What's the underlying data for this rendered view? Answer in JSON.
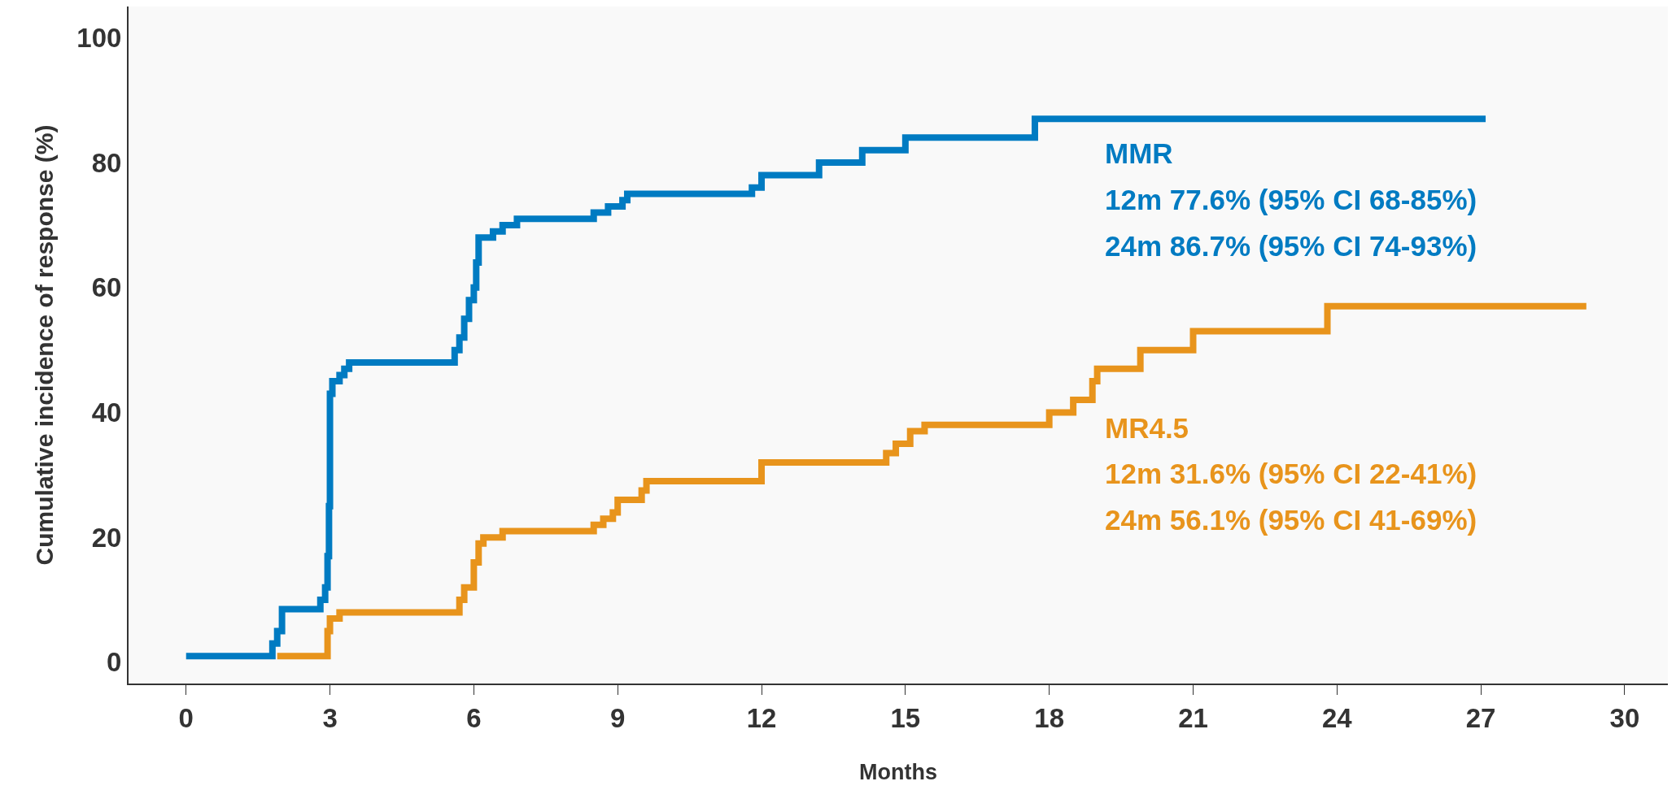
{
  "chart_data": {
    "type": "step",
    "xlabel": "Months",
    "ylabel": "Cumulative incidence of response (%)",
    "xlim": [
      -1.2,
      30.9
    ],
    "ylim": [
      -3.4,
      105
    ],
    "xticks": [
      0,
      3,
      6,
      9,
      12,
      15,
      18,
      21,
      24,
      27,
      30
    ],
    "yticks": [
      0,
      20,
      40,
      60,
      80,
      100
    ],
    "grid": false,
    "legend": false,
    "marker": "none",
    "line_style": "solid",
    "series": [
      {
        "name": "MMR",
        "color": "#007bc2",
        "x": [
          0,
          1.8,
          1.9,
          2.0,
          2.8,
          2.9,
          2.95,
          2.98,
          3.0,
          3.05,
          3.2,
          3.3,
          3.4,
          5.6,
          5.7,
          5.8,
          5.9,
          6.0,
          6.05,
          6.1,
          6.4,
          6.6,
          6.9,
          8.5,
          8.8,
          9.1,
          9.2,
          11.8,
          12.0,
          13.2,
          14.1,
          15.0,
          17.7,
          27.1
        ],
        "values": [
          1,
          3,
          5,
          8.5,
          10,
          12,
          17,
          25,
          43,
          45,
          46,
          47,
          48,
          50,
          52,
          55,
          58,
          60,
          64,
          68,
          69,
          70,
          71,
          72,
          73,
          74,
          75,
          76,
          78,
          80,
          82,
          84,
          87,
          87
        ]
      },
      {
        "name": "MR4.5",
        "color": "#e8941c",
        "x": [
          1.9,
          2.95,
          3.0,
          3.2,
          5.7,
          5.8,
          6.0,
          6.1,
          6.2,
          6.6,
          8.5,
          8.7,
          8.9,
          9.0,
          9.5,
          9.6,
          12.0,
          14.6,
          14.8,
          15.1,
          15.4,
          18.0,
          18.5,
          18.9,
          19.0,
          19.9,
          21.0,
          23.8,
          29.2
        ],
        "values": [
          1,
          5,
          7,
          8,
          10,
          12,
          16,
          19,
          20,
          21,
          22,
          23,
          24,
          26,
          27.5,
          29,
          32,
          33.5,
          35,
          37,
          38,
          40,
          42,
          45,
          47,
          50,
          53,
          57,
          57
        ]
      }
    ],
    "annotations": [
      "12m 77.6% (95% CI 68-85%)",
      "24m 86.7% (95% CI 74-93%)",
      "12m 31.6% (95% CI 22-41%)",
      "24m 56.1% (95% CI 41-69%)"
    ]
  }
}
